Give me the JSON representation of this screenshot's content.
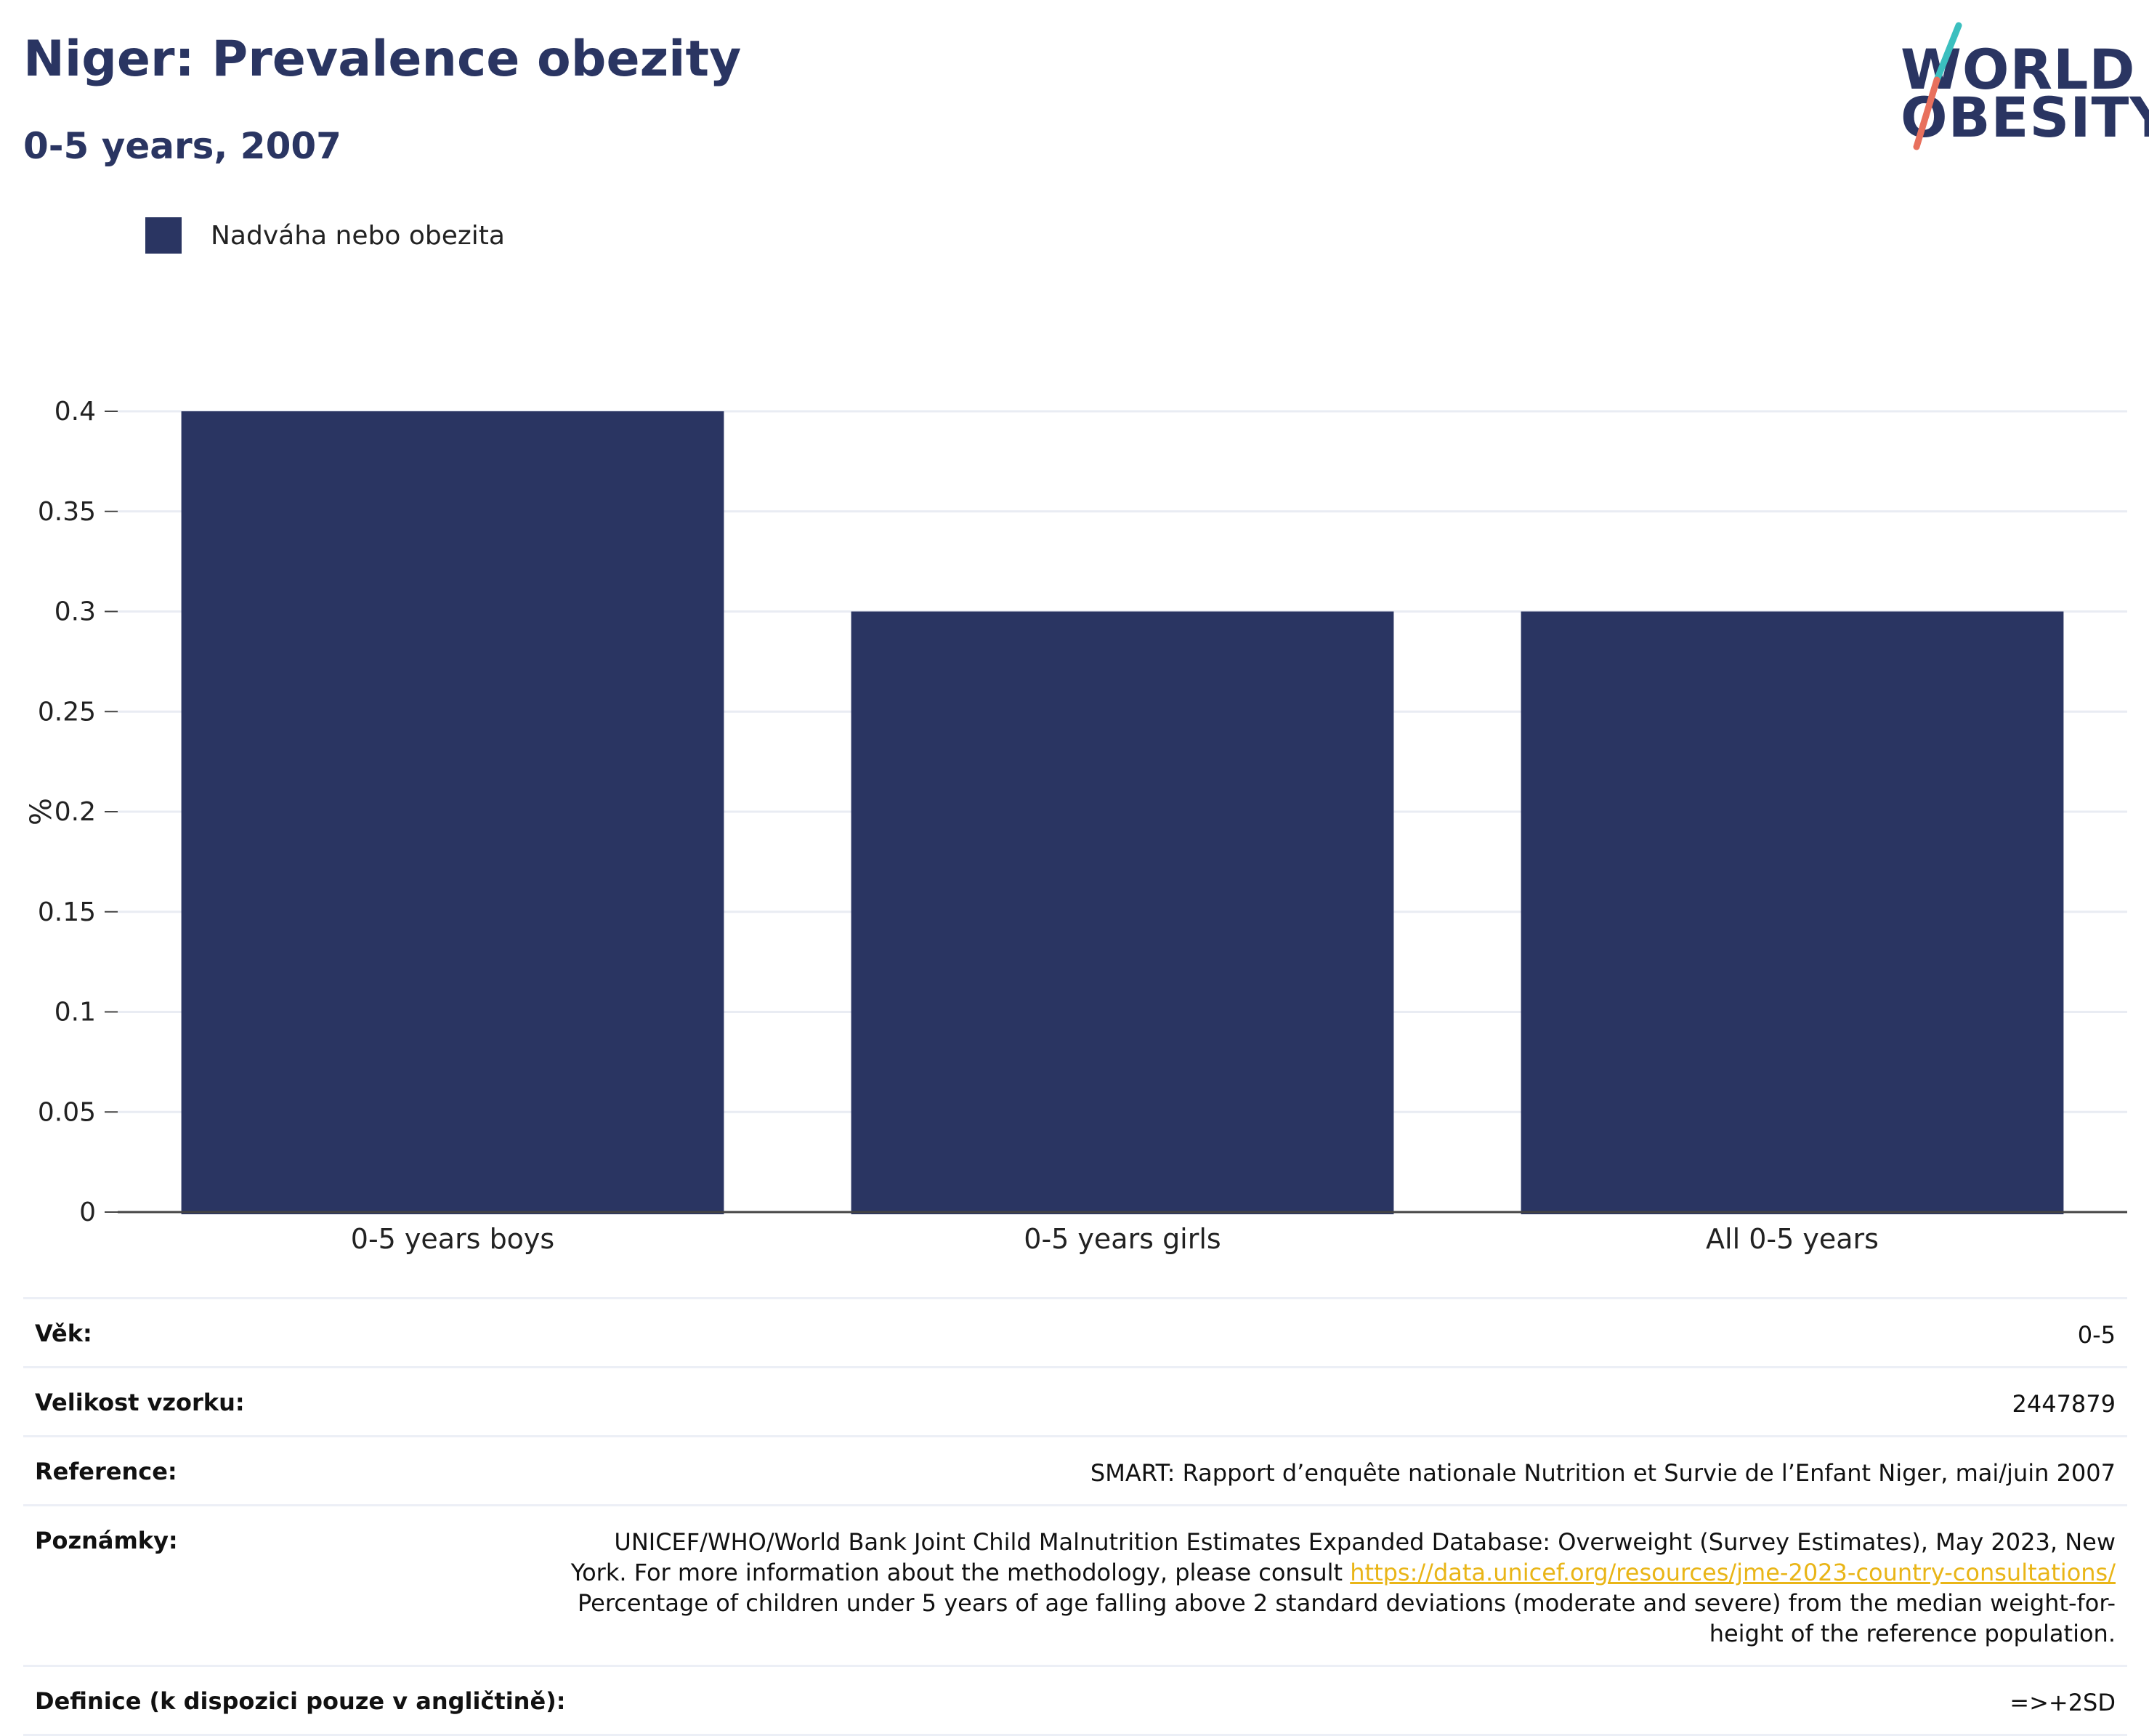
{
  "header": {
    "title": "Niger: Prevalence obezity",
    "subtitle": "0-5 years, 2007"
  },
  "logo": {
    "line1": "WORLD",
    "line2": "OBESITY",
    "colors": {
      "text": "#2a3562",
      "slash_top": "#3bbfbf",
      "slash_bottom": "#e8705d"
    }
  },
  "legend": {
    "items": [
      {
        "label": "Nadváha nebo obezita",
        "color": "#2a3562"
      }
    ]
  },
  "chart_data": {
    "type": "bar",
    "categories": [
      "0-5 years boys",
      "0-5 years girls",
      "All 0-5 years"
    ],
    "series": [
      {
        "name": "Nadváha nebo obezita",
        "values": [
          0.4,
          0.3,
          0.3
        ],
        "color": "#2a3562"
      }
    ],
    "title": "",
    "xlabel": "",
    "ylabel": "%",
    "ylim": [
      0,
      0.4
    ],
    "yticks": [
      "0",
      "0.05",
      "0.1",
      "0.15",
      "0.2",
      "0.25",
      "0.3",
      "0.35",
      "0.4"
    ],
    "grid": true,
    "legend_position": "top-left"
  },
  "meta": {
    "rows": [
      {
        "key": "Věk:",
        "value": "0-5"
      },
      {
        "key": "Velikost vzorku:",
        "value": "2447879"
      },
      {
        "key": "Reference:",
        "value": "SMART: Rapport d’enquête nationale Nutrition et Survie de l’Enfant Niger, mai/juin 2007"
      },
      {
        "key": "Poznámky:",
        "value_line1": "UNICEF/WHO/World Bank Joint Child Malnutrition Estimates Expanded Database: Overweight (Survey Estimates), May 2023, New York. For more information about the methodology, please consult",
        "link": "https://data.unicef.org/resources/jme-2023-country-consultations/",
        "value_line2": "Percentage of children under 5 years of age falling above 2 standard deviations (moderate and severe) from the median weight-for-height of the reference population."
      },
      {
        "key": "Definice (k dispozici pouze v angličtině):",
        "value": "=>+2SD"
      }
    ]
  }
}
